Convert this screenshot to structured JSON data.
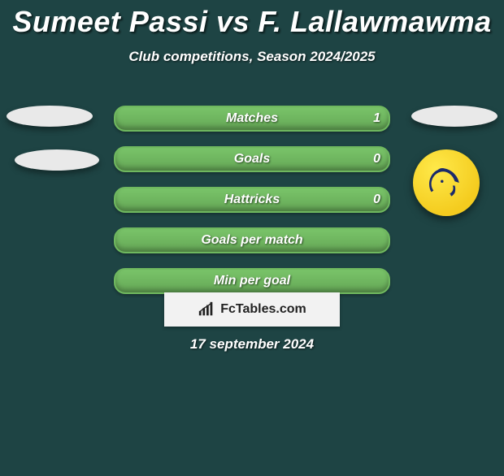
{
  "title": "Sumeet Passi vs F. Lallawmawma",
  "subtitle": "Club competitions, Season 2024/2025",
  "date": "17 september 2024",
  "brand": "FcTables.com",
  "colors": {
    "background": "#1e4444",
    "bar_border": "#6fb85f",
    "bar_fill_light": "#79c469",
    "bar_fill_dark": "#65a756",
    "bar_overlay": "#e9a24a",
    "text": "#ffffff",
    "ellipse": "#e9e9e9",
    "brand_bg": "#f2f2f2",
    "logo_bg_light": "#ffe94a",
    "logo_bg_dark": "#f4cc1f"
  },
  "bars": [
    {
      "label": "Matches",
      "left": "",
      "right": "1",
      "overlay_percent": 0
    },
    {
      "label": "Goals",
      "left": "",
      "right": "0",
      "overlay_percent": 0
    },
    {
      "label": "Hattricks",
      "left": "",
      "right": "0",
      "overlay_percent": 0
    },
    {
      "label": "Goals per match",
      "left": "",
      "right": "",
      "overlay_percent": 0
    },
    {
      "label": "Min per goal",
      "left": "",
      "right": "",
      "overlay_percent": 0
    }
  ],
  "logo_name": "kerala-blasters-logo"
}
